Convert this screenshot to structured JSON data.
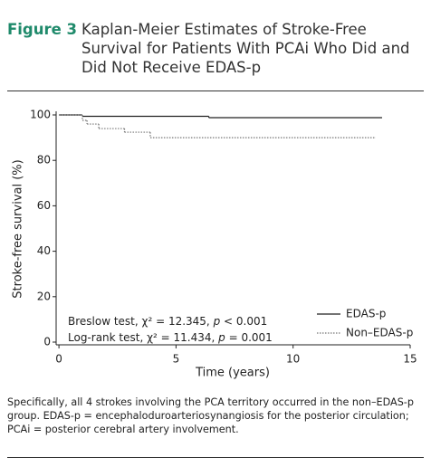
{
  "figure_label": "Figure 3",
  "chart_data": {
    "type": "step",
    "title": "Kaplan-Meier Estimates of Stroke-Free Survival for Patients With PCAi Who Did and Did Not Receive EDAS-p",
    "x_label": "Time (years)",
    "y_label": "Stroke-free survival (%)",
    "xlim": [
      -0.12,
      15
    ],
    "xticks": [
      0,
      5,
      10,
      15
    ],
    "ylim": [
      0,
      100
    ],
    "yticks": [
      0,
      20,
      40,
      60,
      80,
      100
    ],
    "legend": "lower right",
    "series": [
      {
        "name": "EDAS-p",
        "color": "#222222",
        "dash": "solid",
        "x": [
          0,
          1,
          6.4,
          13.8
        ],
        "values": [
          100,
          99.4,
          98.8,
          98.8
        ]
      },
      {
        "name": "Non–EDAS-p",
        "color": "#777777",
        "dash": "dotted",
        "x": [
          0,
          1,
          1.2,
          1.7,
          2.8,
          3.9,
          13.5
        ],
        "values": [
          100,
          97.6,
          96,
          94,
          92.4,
          90,
          90
        ]
      }
    ],
    "annotations": [
      [
        "Breslow test, χ² = 12.345, ",
        "p",
        " < 0.001"
      ],
      [
        "Log-rank test, χ² = 11.434, ",
        "p",
        " = 0.001"
      ]
    ]
  },
  "caption": "Specifically, all 4 strokes involving the PCA territory occurred in the non–EDAS-p group. EDAS-p = encephaloduroarteriosynangiosis for the posterior circulation; PCAi = posterior cerebral artery involvement."
}
